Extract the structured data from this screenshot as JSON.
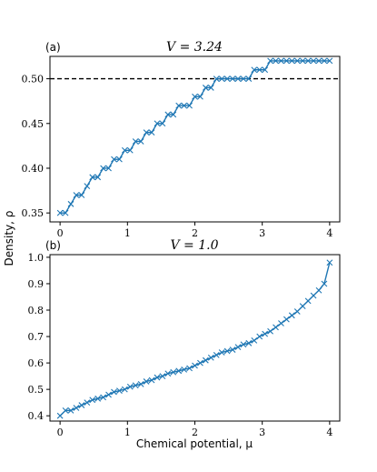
{
  "figure": {
    "ylabel": "Density, ρ",
    "xlabel": "Chemical potential, μ"
  },
  "chart_data": [
    {
      "type": "line",
      "panel_label": "(a)",
      "title": "V = 3.24",
      "xlim": [
        -0.15,
        4.15
      ],
      "ylim": [
        0.34,
        0.525
      ],
      "xticks": [
        0,
        1,
        2,
        3,
        4
      ],
      "yticks": [
        0.35,
        0.4,
        0.45,
        0.5
      ],
      "ytick_labels": [
        "0.35",
        "0.40",
        "0.45",
        "0.50"
      ],
      "xtick_labels": [
        "0",
        "1",
        "2",
        "3",
        "4"
      ],
      "reference_line": {
        "y": 0.5,
        "style": "dashed",
        "color": "#000000"
      },
      "series": [
        {
          "color": "#1f77b4",
          "marker": "x",
          "x": [
            0.0,
            0.08,
            0.16,
            0.24,
            0.32,
            0.4,
            0.48,
            0.56,
            0.64,
            0.72,
            0.8,
            0.88,
            0.96,
            1.04,
            1.12,
            1.2,
            1.28,
            1.36,
            1.44,
            1.52,
            1.6,
            1.68,
            1.76,
            1.84,
            1.92,
            2.0,
            2.08,
            2.16,
            2.24,
            2.32,
            2.4,
            2.48,
            2.56,
            2.64,
            2.72,
            2.8,
            2.88,
            2.96,
            3.04,
            3.12,
            3.2,
            3.28,
            3.36,
            3.44,
            3.52,
            3.6,
            3.68,
            3.76,
            3.84,
            3.92,
            4.0
          ],
          "y": [
            0.35,
            0.35,
            0.36,
            0.37,
            0.37,
            0.38,
            0.39,
            0.39,
            0.4,
            0.4,
            0.41,
            0.41,
            0.42,
            0.42,
            0.43,
            0.43,
            0.44,
            0.44,
            0.45,
            0.45,
            0.46,
            0.46,
            0.47,
            0.47,
            0.47,
            0.48,
            0.48,
            0.49,
            0.49,
            0.5,
            0.5,
            0.5,
            0.5,
            0.5,
            0.5,
            0.5,
            0.51,
            0.51,
            0.51,
            0.52,
            0.52,
            0.52,
            0.52,
            0.52,
            0.52,
            0.52,
            0.52,
            0.52,
            0.52,
            0.52,
            0.52
          ]
        }
      ]
    },
    {
      "type": "line",
      "panel_label": "(b)",
      "title": "V = 1.0",
      "xlim": [
        -0.15,
        4.15
      ],
      "ylim": [
        0.38,
        1.01
      ],
      "xticks": [
        0,
        1,
        2,
        3,
        4
      ],
      "yticks": [
        0.4,
        0.5,
        0.6,
        0.7,
        0.8,
        0.9,
        1.0
      ],
      "ytick_labels": [
        "0.4",
        "0.5",
        "0.6",
        "0.7",
        "0.8",
        "0.9",
        "1.0"
      ],
      "xtick_labels": [
        "0",
        "1",
        "2",
        "3",
        "4"
      ],
      "series": [
        {
          "color": "#1f77b4",
          "marker": "x",
          "x": [
            0.0,
            0.08,
            0.16,
            0.24,
            0.32,
            0.4,
            0.48,
            0.56,
            0.64,
            0.72,
            0.8,
            0.88,
            0.96,
            1.04,
            1.12,
            1.2,
            1.28,
            1.36,
            1.44,
            1.52,
            1.6,
            1.68,
            1.76,
            1.84,
            1.92,
            2.0,
            2.08,
            2.16,
            2.24,
            2.32,
            2.4,
            2.48,
            2.56,
            2.64,
            2.72,
            2.8,
            2.88,
            2.96,
            3.04,
            3.12,
            3.2,
            3.28,
            3.36,
            3.44,
            3.52,
            3.6,
            3.68,
            3.76,
            3.84,
            3.92,
            4.0
          ],
          "y": [
            0.4,
            0.42,
            0.42,
            0.43,
            0.44,
            0.45,
            0.46,
            0.465,
            0.47,
            0.48,
            0.49,
            0.495,
            0.5,
            0.51,
            0.515,
            0.52,
            0.53,
            0.535,
            0.545,
            0.55,
            0.56,
            0.565,
            0.57,
            0.575,
            0.58,
            0.59,
            0.6,
            0.61,
            0.62,
            0.63,
            0.64,
            0.645,
            0.65,
            0.66,
            0.67,
            0.675,
            0.685,
            0.7,
            0.71,
            0.72,
            0.735,
            0.75,
            0.765,
            0.78,
            0.795,
            0.815,
            0.835,
            0.855,
            0.875,
            0.9,
            0.98
          ]
        }
      ]
    }
  ]
}
